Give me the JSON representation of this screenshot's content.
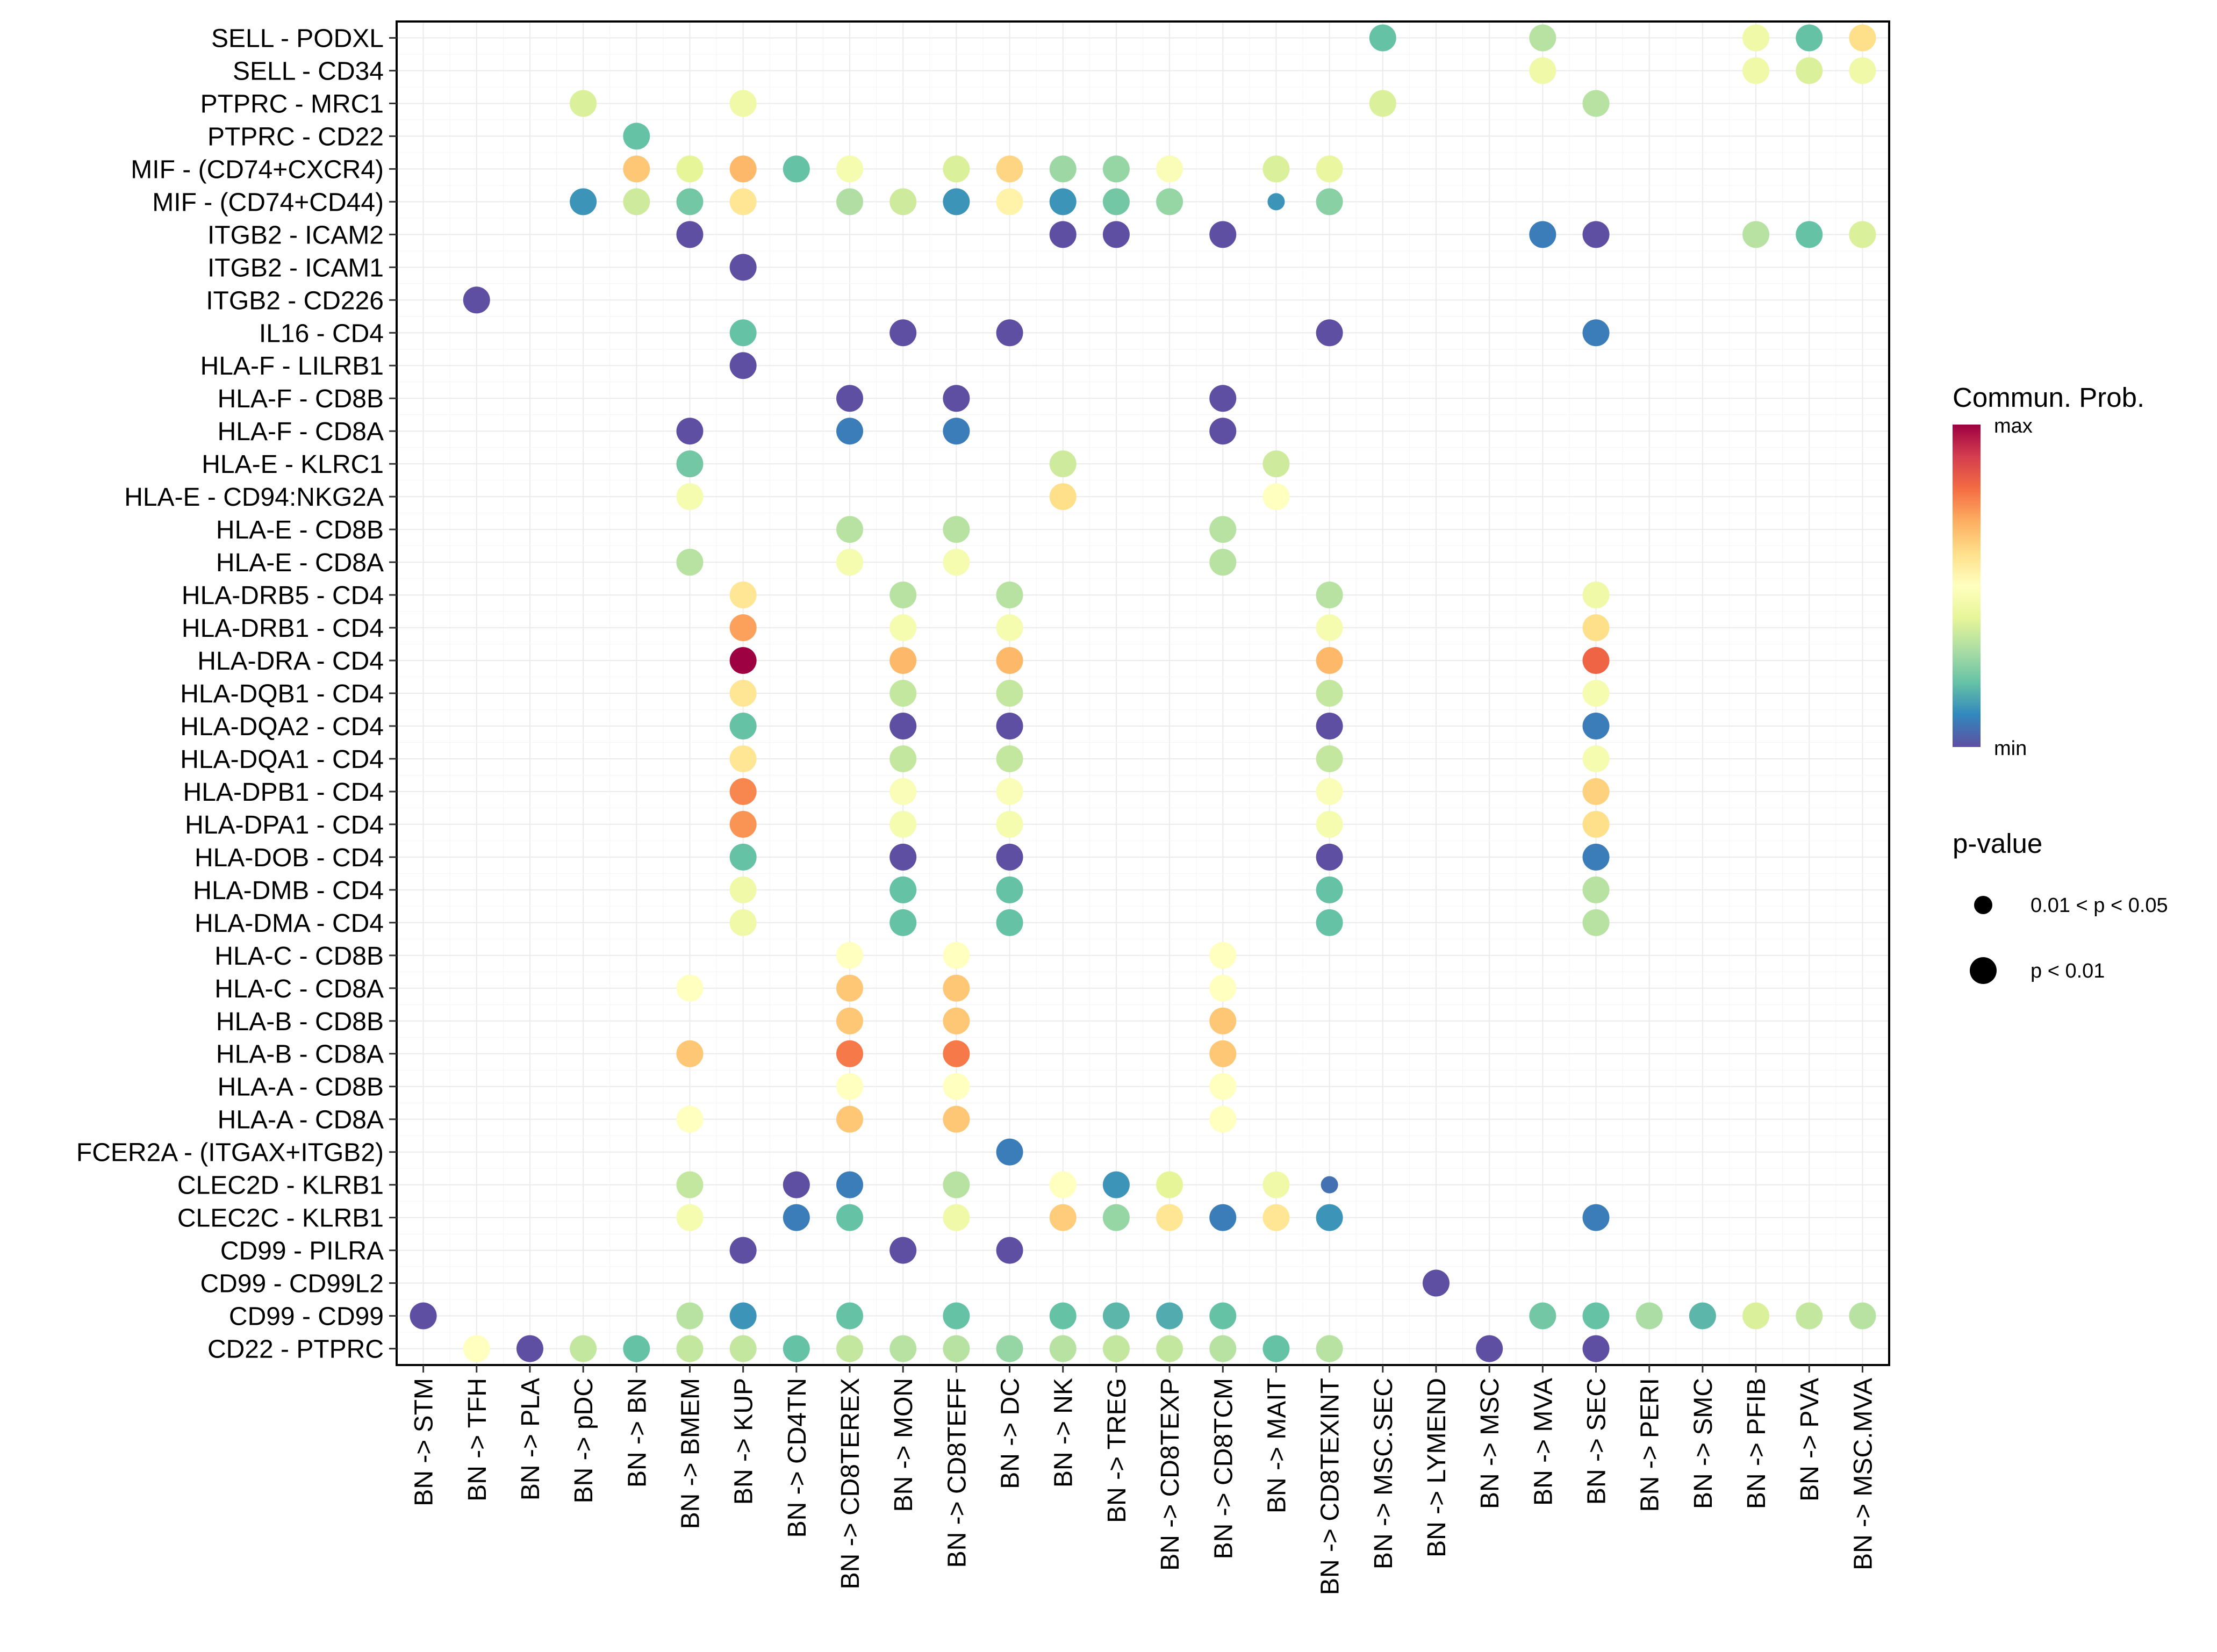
{
  "chart_data": {
    "type": "scatter",
    "subtype": "dot-plot",
    "title": "",
    "xlabel": "",
    "ylabel": "",
    "grid": true,
    "legend_position": "right",
    "x_categories": [
      "BN -> STM",
      "BN -> TFH",
      "BN -> PLA",
      "BN -> pDC",
      "BN -> BN",
      "BN -> BMEM",
      "BN -> KUP",
      "BN -> CD4TN",
      "BN -> CD8TEREX",
      "BN -> MON",
      "BN -> CD8TEFF",
      "BN -> DC",
      "BN -> NK",
      "BN -> TREG",
      "BN -> CD8TEXP",
      "BN -> CD8TCM",
      "BN -> MAIT",
      "BN -> CD8TEXINT",
      "BN -> MSC.SEC",
      "BN -> LYMEND",
      "BN -> MSC",
      "BN -> MVA",
      "BN -> SEC",
      "BN -> PERI",
      "BN -> SMC",
      "BN -> PFIB",
      "BN -> PVA",
      "BN -> MSC.MVA"
    ],
    "y_categories": [
      "SELL - PODXL",
      "SELL - CD34",
      "PTPRC - MRC1",
      "PTPRC - CD22",
      "MIF - (CD74+CXCR4)",
      "MIF - (CD74+CD44)",
      "ITGB2 - ICAM2",
      "ITGB2 - ICAM1",
      "ITGB2 - CD226",
      "IL16 - CD4",
      "HLA-F - LILRB1",
      "HLA-F - CD8B",
      "HLA-F - CD8A",
      "HLA-E - KLRC1",
      "HLA-E - CD94:NKG2A",
      "HLA-E - CD8B",
      "HLA-E - CD8A",
      "HLA-DRB5 - CD4",
      "HLA-DRB1 - CD4",
      "HLA-DRA - CD4",
      "HLA-DQB1 - CD4",
      "HLA-DQA2 - CD4",
      "HLA-DQA1 - CD4",
      "HLA-DPB1 - CD4",
      "HLA-DPA1 - CD4",
      "HLA-DOB - CD4",
      "HLA-DMB - CD4",
      "HLA-DMA - CD4",
      "HLA-C - CD8B",
      "HLA-C - CD8A",
      "HLA-B - CD8B",
      "HLA-B - CD8A",
      "HLA-A - CD8B",
      "HLA-A - CD8A",
      "FCER2A - (ITGAX+ITGB2)",
      "CLEC2D - KLRB1",
      "CLEC2C - KLRB1",
      "CD99 - PILRA",
      "CD99 - CD99L2",
      "CD99 - CD99",
      "CD22 - PTPRC"
    ],
    "color_scale": {
      "title": "Commun. Prob.",
      "min_label": "min",
      "max_label": "max",
      "palette": [
        "#5E4FA2",
        "#3288BD",
        "#66C2A5",
        "#ABDDA4",
        "#E6F598",
        "#FFFFBF",
        "#FEE08B",
        "#FDAE61",
        "#F46D43",
        "#D53E4F",
        "#9E0142"
      ]
    },
    "size_legend": {
      "title": "p-value",
      "entries": [
        {
          "key": "p2",
          "label": "0.01 < p < 0.05"
        },
        {
          "key": "p1",
          "label": "p < 0.01"
        }
      ]
    },
    "points_note": "each point: [y_category_index, x_category_index, normalized communication probability 0(min)-1(max), p-value class]",
    "points": [
      [
        0,
        18,
        0.2,
        "p1"
      ],
      [
        0,
        21,
        0.32,
        "p1"
      ],
      [
        0,
        25,
        0.44,
        "p1"
      ],
      [
        0,
        26,
        0.2,
        "p1"
      ],
      [
        0,
        27,
        0.6,
        "p1"
      ],
      [
        1,
        21,
        0.44,
        "p1"
      ],
      [
        1,
        25,
        0.44,
        "p1"
      ],
      [
        1,
        26,
        0.38,
        "p1"
      ],
      [
        1,
        27,
        0.44,
        "p1"
      ],
      [
        2,
        3,
        0.38,
        "p1"
      ],
      [
        2,
        6,
        0.44,
        "p1"
      ],
      [
        2,
        18,
        0.38,
        "p1"
      ],
      [
        2,
        22,
        0.32,
        "p1"
      ],
      [
        3,
        4,
        0.2,
        "p1"
      ],
      [
        4,
        4,
        0.65,
        "p1"
      ],
      [
        4,
        5,
        0.4,
        "p1"
      ],
      [
        4,
        6,
        0.68,
        "p1"
      ],
      [
        4,
        7,
        0.2,
        "p1"
      ],
      [
        4,
        8,
        0.46,
        "p1"
      ],
      [
        4,
        10,
        0.38,
        "p1"
      ],
      [
        4,
        11,
        0.62,
        "p1"
      ],
      [
        4,
        12,
        0.28,
        "p1"
      ],
      [
        4,
        13,
        0.27,
        "p1"
      ],
      [
        4,
        14,
        0.48,
        "p1"
      ],
      [
        4,
        16,
        0.38,
        "p1"
      ],
      [
        4,
        17,
        0.42,
        "p1"
      ],
      [
        5,
        3,
        0.12,
        "p1"
      ],
      [
        5,
        4,
        0.36,
        "p1"
      ],
      [
        5,
        5,
        0.22,
        "p1"
      ],
      [
        5,
        6,
        0.58,
        "p1"
      ],
      [
        5,
        8,
        0.31,
        "p1"
      ],
      [
        5,
        9,
        0.36,
        "p1"
      ],
      [
        5,
        10,
        0.12,
        "p1"
      ],
      [
        5,
        11,
        0.54,
        "p1"
      ],
      [
        5,
        12,
        0.12,
        "p1"
      ],
      [
        5,
        13,
        0.22,
        "p1"
      ],
      [
        5,
        14,
        0.27,
        "p1"
      ],
      [
        5,
        16,
        0.12,
        "p2"
      ],
      [
        5,
        17,
        0.25,
        "p1"
      ],
      [
        6,
        5,
        0.0,
        "p1"
      ],
      [
        6,
        12,
        0.0,
        "p1"
      ],
      [
        6,
        13,
        0.0,
        "p1"
      ],
      [
        6,
        15,
        0.0,
        "p1"
      ],
      [
        6,
        21,
        0.08,
        "p1"
      ],
      [
        6,
        22,
        0.0,
        "p1"
      ],
      [
        6,
        25,
        0.32,
        "p1"
      ],
      [
        6,
        26,
        0.2,
        "p1"
      ],
      [
        6,
        27,
        0.38,
        "p1"
      ],
      [
        7,
        6,
        0.0,
        "p1"
      ],
      [
        8,
        1,
        0.0,
        "p1"
      ],
      [
        9,
        6,
        0.2,
        "p1"
      ],
      [
        9,
        9,
        0.0,
        "p1"
      ],
      [
        9,
        11,
        0.0,
        "p1"
      ],
      [
        9,
        17,
        0.0,
        "p1"
      ],
      [
        9,
        22,
        0.08,
        "p1"
      ],
      [
        10,
        6,
        0.0,
        "p1"
      ],
      [
        11,
        8,
        0.0,
        "p1"
      ],
      [
        11,
        10,
        0.0,
        "p1"
      ],
      [
        11,
        15,
        0.0,
        "p1"
      ],
      [
        12,
        5,
        0.0,
        "p1"
      ],
      [
        12,
        8,
        0.08,
        "p1"
      ],
      [
        12,
        10,
        0.08,
        "p1"
      ],
      [
        12,
        15,
        0.0,
        "p1"
      ],
      [
        13,
        5,
        0.22,
        "p1"
      ],
      [
        13,
        12,
        0.36,
        "p1"
      ],
      [
        13,
        16,
        0.36,
        "p1"
      ],
      [
        14,
        5,
        0.46,
        "p1"
      ],
      [
        14,
        12,
        0.6,
        "p1"
      ],
      [
        14,
        16,
        0.5,
        "p1"
      ],
      [
        15,
        8,
        0.32,
        "p1"
      ],
      [
        15,
        10,
        0.32,
        "p1"
      ],
      [
        15,
        15,
        0.32,
        "p1"
      ],
      [
        16,
        5,
        0.32,
        "p1"
      ],
      [
        16,
        8,
        0.46,
        "p1"
      ],
      [
        16,
        10,
        0.46,
        "p1"
      ],
      [
        16,
        15,
        0.32,
        "p1"
      ],
      [
        17,
        6,
        0.58,
        "p1"
      ],
      [
        17,
        9,
        0.32,
        "p1"
      ],
      [
        17,
        11,
        0.32,
        "p1"
      ],
      [
        17,
        17,
        0.32,
        "p1"
      ],
      [
        17,
        22,
        0.44,
        "p1"
      ],
      [
        18,
        6,
        0.72,
        "p1"
      ],
      [
        18,
        9,
        0.46,
        "p1"
      ],
      [
        18,
        11,
        0.46,
        "p1"
      ],
      [
        18,
        17,
        0.46,
        "p1"
      ],
      [
        18,
        22,
        0.6,
        "p1"
      ],
      [
        19,
        6,
        1.0,
        "p1"
      ],
      [
        19,
        9,
        0.68,
        "p1"
      ],
      [
        19,
        11,
        0.68,
        "p1"
      ],
      [
        19,
        17,
        0.68,
        "p1"
      ],
      [
        19,
        22,
        0.82,
        "p1"
      ],
      [
        20,
        6,
        0.58,
        "p1"
      ],
      [
        20,
        9,
        0.34,
        "p1"
      ],
      [
        20,
        11,
        0.34,
        "p1"
      ],
      [
        20,
        17,
        0.34,
        "p1"
      ],
      [
        20,
        22,
        0.46,
        "p1"
      ],
      [
        21,
        6,
        0.2,
        "p1"
      ],
      [
        21,
        9,
        0.0,
        "p1"
      ],
      [
        21,
        11,
        0.0,
        "p1"
      ],
      [
        21,
        17,
        0.0,
        "p1"
      ],
      [
        21,
        22,
        0.08,
        "p1"
      ],
      [
        22,
        6,
        0.58,
        "p1"
      ],
      [
        22,
        9,
        0.34,
        "p1"
      ],
      [
        22,
        11,
        0.34,
        "p1"
      ],
      [
        22,
        17,
        0.34,
        "p1"
      ],
      [
        22,
        22,
        0.46,
        "p1"
      ],
      [
        23,
        6,
        0.76,
        "p1"
      ],
      [
        23,
        9,
        0.48,
        "p1"
      ],
      [
        23,
        11,
        0.48,
        "p1"
      ],
      [
        23,
        17,
        0.48,
        "p1"
      ],
      [
        23,
        22,
        0.63,
        "p1"
      ],
      [
        24,
        6,
        0.74,
        "p1"
      ],
      [
        24,
        9,
        0.46,
        "p1"
      ],
      [
        24,
        11,
        0.46,
        "p1"
      ],
      [
        24,
        17,
        0.46,
        "p1"
      ],
      [
        24,
        22,
        0.6,
        "p1"
      ],
      [
        25,
        6,
        0.2,
        "p1"
      ],
      [
        25,
        9,
        0.0,
        "p1"
      ],
      [
        25,
        11,
        0.0,
        "p1"
      ],
      [
        25,
        17,
        0.0,
        "p1"
      ],
      [
        25,
        22,
        0.08,
        "p1"
      ],
      [
        26,
        6,
        0.44,
        "p1"
      ],
      [
        26,
        9,
        0.2,
        "p1"
      ],
      [
        26,
        11,
        0.2,
        "p1"
      ],
      [
        26,
        17,
        0.2,
        "p1"
      ],
      [
        26,
        22,
        0.32,
        "p1"
      ],
      [
        27,
        6,
        0.44,
        "p1"
      ],
      [
        27,
        9,
        0.2,
        "p1"
      ],
      [
        27,
        11,
        0.2,
        "p1"
      ],
      [
        27,
        17,
        0.2,
        "p1"
      ],
      [
        27,
        22,
        0.32,
        "p1"
      ],
      [
        28,
        8,
        0.5,
        "p1"
      ],
      [
        28,
        10,
        0.5,
        "p1"
      ],
      [
        28,
        15,
        0.5,
        "p1"
      ],
      [
        29,
        5,
        0.5,
        "p1"
      ],
      [
        29,
        8,
        0.65,
        "p1"
      ],
      [
        29,
        10,
        0.65,
        "p1"
      ],
      [
        29,
        15,
        0.5,
        "p1"
      ],
      [
        30,
        8,
        0.65,
        "p1"
      ],
      [
        30,
        10,
        0.65,
        "p1"
      ],
      [
        30,
        15,
        0.65,
        "p1"
      ],
      [
        31,
        5,
        0.65,
        "p1"
      ],
      [
        31,
        8,
        0.78,
        "p1"
      ],
      [
        31,
        10,
        0.78,
        "p1"
      ],
      [
        31,
        15,
        0.65,
        "p1"
      ],
      [
        32,
        8,
        0.5,
        "p1"
      ],
      [
        32,
        10,
        0.5,
        "p1"
      ],
      [
        32,
        15,
        0.5,
        "p1"
      ],
      [
        33,
        5,
        0.5,
        "p1"
      ],
      [
        33,
        8,
        0.65,
        "p1"
      ],
      [
        33,
        10,
        0.65,
        "p1"
      ],
      [
        33,
        15,
        0.5,
        "p1"
      ],
      [
        34,
        11,
        0.08,
        "p1"
      ],
      [
        35,
        5,
        0.34,
        "p1"
      ],
      [
        35,
        7,
        0.0,
        "p1"
      ],
      [
        35,
        8,
        0.08,
        "p1"
      ],
      [
        35,
        10,
        0.32,
        "p1"
      ],
      [
        35,
        12,
        0.5,
        "p1"
      ],
      [
        35,
        13,
        0.12,
        "p1"
      ],
      [
        35,
        14,
        0.4,
        "p1"
      ],
      [
        35,
        16,
        0.44,
        "p1"
      ],
      [
        35,
        17,
        0.06,
        "p2"
      ],
      [
        36,
        5,
        0.46,
        "p1"
      ],
      [
        36,
        7,
        0.08,
        "p1"
      ],
      [
        36,
        8,
        0.2,
        "p1"
      ],
      [
        36,
        10,
        0.44,
        "p1"
      ],
      [
        36,
        12,
        0.64,
        "p1"
      ],
      [
        36,
        13,
        0.27,
        "p1"
      ],
      [
        36,
        14,
        0.58,
        "p1"
      ],
      [
        36,
        15,
        0.08,
        "p1"
      ],
      [
        36,
        16,
        0.58,
        "p1"
      ],
      [
        36,
        17,
        0.12,
        "p1"
      ],
      [
        36,
        22,
        0.08,
        "p1"
      ],
      [
        37,
        6,
        0.0,
        "p1"
      ],
      [
        37,
        9,
        0.0,
        "p1"
      ],
      [
        37,
        11,
        0.0,
        "p1"
      ],
      [
        38,
        19,
        0.0,
        "p1"
      ],
      [
        39,
        0,
        0.0,
        "p1"
      ],
      [
        39,
        5,
        0.32,
        "p1"
      ],
      [
        39,
        6,
        0.12,
        "p1"
      ],
      [
        39,
        8,
        0.2,
        "p1"
      ],
      [
        39,
        10,
        0.2,
        "p1"
      ],
      [
        39,
        12,
        0.2,
        "p1"
      ],
      [
        39,
        13,
        0.18,
        "p1"
      ],
      [
        39,
        14,
        0.16,
        "p1"
      ],
      [
        39,
        15,
        0.2,
        "p1"
      ],
      [
        39,
        21,
        0.22,
        "p1"
      ],
      [
        39,
        22,
        0.2,
        "p1"
      ],
      [
        39,
        23,
        0.3,
        "p1"
      ],
      [
        39,
        24,
        0.18,
        "p1"
      ],
      [
        39,
        25,
        0.38,
        "p1"
      ],
      [
        39,
        26,
        0.34,
        "p1"
      ],
      [
        39,
        27,
        0.32,
        "p1"
      ],
      [
        40,
        1,
        0.5,
        "p1"
      ],
      [
        40,
        2,
        0.0,
        "p1"
      ],
      [
        40,
        3,
        0.34,
        "p1"
      ],
      [
        40,
        4,
        0.2,
        "p1"
      ],
      [
        40,
        5,
        0.34,
        "p1"
      ],
      [
        40,
        6,
        0.34,
        "p1"
      ],
      [
        40,
        7,
        0.2,
        "p1"
      ],
      [
        40,
        8,
        0.34,
        "p1"
      ],
      [
        40,
        9,
        0.32,
        "p1"
      ],
      [
        40,
        10,
        0.32,
        "p1"
      ],
      [
        40,
        11,
        0.27,
        "p1"
      ],
      [
        40,
        12,
        0.32,
        "p1"
      ],
      [
        40,
        13,
        0.34,
        "p1"
      ],
      [
        40,
        14,
        0.34,
        "p1"
      ],
      [
        40,
        15,
        0.32,
        "p1"
      ],
      [
        40,
        16,
        0.2,
        "p1"
      ],
      [
        40,
        17,
        0.32,
        "p1"
      ],
      [
        40,
        20,
        0.0,
        "p1"
      ],
      [
        40,
        22,
        0.0,
        "p1"
      ]
    ]
  }
}
